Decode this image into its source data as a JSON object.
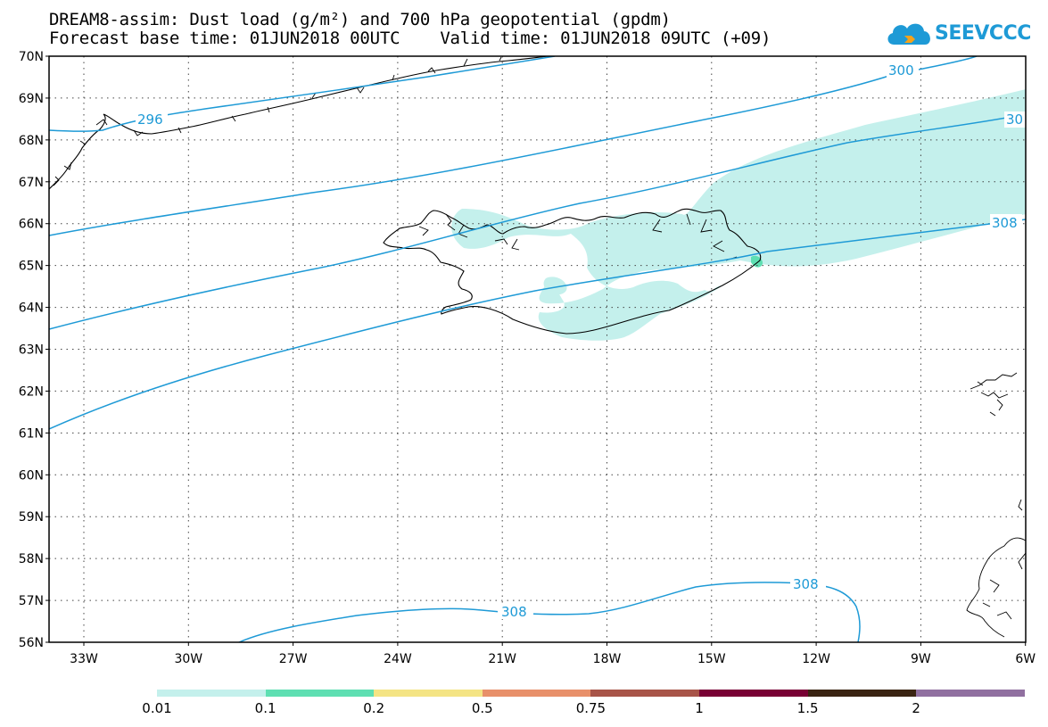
{
  "title": {
    "line1": "DREAM8-assim: Dust load (g/m²) and 700 hPa geopotential (gpdm)",
    "line2": "Forecast base time: 01JUN2018 00UTC    Valid time: 01JUN2018 09UTC (+09)"
  },
  "logo": {
    "text": "SEEVCCC",
    "icon": "cloud-logo-icon",
    "color": "#1e9ad6"
  },
  "map": {
    "lat_labels": [
      "70N",
      "69N",
      "68N",
      "67N",
      "66N",
      "65N",
      "64N",
      "63N",
      "62N",
      "61N",
      "60N",
      "59N",
      "58N",
      "57N",
      "56N"
    ],
    "lon_labels": [
      "33W",
      "30W",
      "27W",
      "24W",
      "21W",
      "18W",
      "15W",
      "12W",
      "9W",
      "6W"
    ],
    "contour_labels": {
      "c296": "296",
      "c300": "300",
      "c304": "30",
      "c308a": "308",
      "c308b": "308",
      "c308c": "308"
    },
    "contour_color": "#1e9ad6",
    "dust_color": "#c4f0ec"
  },
  "colorbar": {
    "colors": [
      "#c4f0ec",
      "#5edfb2",
      "#f4e484",
      "#e8906a",
      "#a85448",
      "#780034",
      "#3a2412",
      "#9070a0"
    ],
    "labels": [
      "0.01",
      "0.1",
      "0.2",
      "0.5",
      "0.75",
      "1",
      "1.5",
      "2"
    ]
  }
}
